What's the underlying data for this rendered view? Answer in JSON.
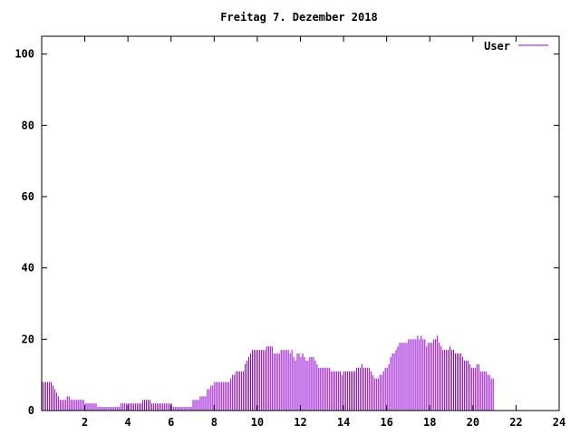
{
  "chart_data": {
    "type": "bar",
    "title": "Freitag 7. Dezember 2018",
    "xlabel": "",
    "ylabel": "",
    "xlim": [
      0,
      24
    ],
    "ylim": [
      0,
      105
    ],
    "xticks": [
      2,
      4,
      6,
      8,
      10,
      12,
      14,
      16,
      18,
      20,
      22,
      24
    ],
    "yticks": [
      0,
      20,
      40,
      60,
      80,
      100
    ],
    "grid": false,
    "legend_position": "top-right",
    "series": [
      {
        "name": "User",
        "color": "#9400d3",
        "sample_interval_min": 5,
        "values": [
          8,
          8,
          8,
          8,
          8,
          8,
          7,
          6,
          5,
          4,
          3,
          3,
          3,
          3,
          4,
          4,
          3,
          3,
          3,
          3,
          3,
          3,
          3,
          3,
          2,
          2,
          2,
          2,
          2,
          2,
          2,
          1,
          1,
          1,
          1,
          1,
          1,
          1,
          1,
          1,
          1,
          1,
          1,
          1,
          2,
          2,
          2,
          2,
          2,
          2,
          2,
          2,
          2,
          2,
          2,
          2,
          3,
          3,
          3,
          3,
          3,
          2,
          2,
          2,
          2,
          2,
          2,
          2,
          2,
          2,
          2,
          2,
          2,
          1,
          1,
          1,
          1,
          1,
          1,
          1,
          1,
          1,
          1,
          1,
          3,
          3,
          3,
          3,
          4,
          4,
          4,
          4,
          6,
          6,
          7,
          7,
          8,
          8,
          8,
          8,
          8,
          8,
          8,
          8,
          8,
          9,
          10,
          10,
          11,
          11,
          11,
          11,
          11,
          13,
          14,
          15,
          16,
          17,
          17,
          17,
          17,
          17,
          17,
          17,
          17,
          18,
          18,
          18,
          18,
          16,
          16,
          16,
          16,
          17,
          17,
          17,
          17,
          17,
          16,
          17,
          15,
          14,
          16,
          16,
          15,
          16,
          15,
          14,
          14,
          15,
          15,
          15,
          14,
          13,
          12,
          12,
          12,
          12,
          12,
          12,
          12,
          11,
          11,
          11,
          11,
          11,
          11,
          10,
          11,
          11,
          11,
          11,
          11,
          11,
          11,
          12,
          12,
          12,
          13,
          12,
          12,
          12,
          12,
          11,
          10,
          9,
          9,
          9,
          10,
          10,
          11,
          12,
          12,
          13,
          15,
          16,
          16,
          17,
          18,
          19,
          19,
          19,
          19,
          19,
          20,
          20,
          20,
          20,
          20,
          21,
          20,
          21,
          20,
          20,
          18,
          19,
          19,
          19,
          20,
          20,
          21,
          19,
          18,
          17,
          17,
          17,
          17,
          18,
          17,
          17,
          16,
          16,
          16,
          16,
          15,
          14,
          14,
          14,
          13,
          12,
          12,
          12,
          13,
          13,
          11,
          11,
          11,
          11,
          10,
          10,
          9,
          9
        ]
      }
    ]
  }
}
